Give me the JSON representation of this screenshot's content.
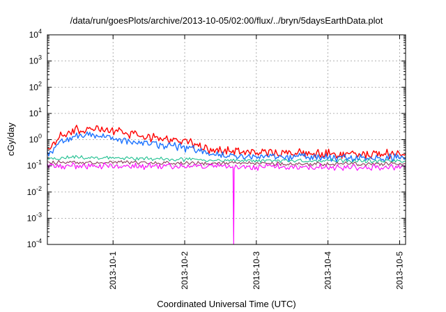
{
  "chart_data": {
    "type": "line",
    "title": "/data/run/goesPlots/archive/2013-10-05/02:00/flux/../bryn/5daysEarthData.plot",
    "xlabel": "Coordinated Universal Time (UTC)",
    "ylabel": "cGy/day",
    "yscale": "log",
    "ylim": [
      0.0001,
      10000
    ],
    "y_ticks": [
      {
        "value": 0.0001,
        "base": "10",
        "exp": "-4"
      },
      {
        "value": 0.001,
        "base": "10",
        "exp": "-3"
      },
      {
        "value": 0.01,
        "base": "10",
        "exp": "-2"
      },
      {
        "value": 0.1,
        "base": "10",
        "exp": "-1"
      },
      {
        "value": 1,
        "base": "10",
        "exp": "0"
      },
      {
        "value": 10,
        "base": "10",
        "exp": "1"
      },
      {
        "value": 100,
        "base": "10",
        "exp": "2"
      },
      {
        "value": 1000,
        "base": "10",
        "exp": "3"
      },
      {
        "value": 10000,
        "base": "10",
        "exp": "4"
      }
    ],
    "xlim": [
      "2013-09-30 02:00",
      "2013-10-05 02:00"
    ],
    "x_ticks": [
      "2013-10-1",
      "2013-10-2",
      "2013-10-3",
      "2013-10-4",
      "2013-10-5"
    ],
    "x_tick_dates": [
      "2013-10-01 00:00",
      "2013-10-02 00:00",
      "2013-10-03 00:00",
      "2013-10-04 00:00",
      "2013-10-05 00:00"
    ],
    "grid": true,
    "legend": "none",
    "series": [
      {
        "color": "#ff0000",
        "x": [
          "2013-09-30 02:00",
          "2013-09-30 06:00",
          "2013-09-30 10:00",
          "2013-09-30 14:00",
          "2013-09-30 18:00",
          "2013-09-30 22:00",
          "2013-10-01 02:00",
          "2013-10-01 06:00",
          "2013-10-01 10:00",
          "2013-10-01 14:00",
          "2013-10-01 18:00",
          "2013-10-01 22:00",
          "2013-10-02 02:00",
          "2013-10-02 06:00",
          "2013-10-02 10:00",
          "2013-10-02 14:00",
          "2013-10-02 18:00",
          "2013-10-02 22:00",
          "2013-10-03 02:00",
          "2013-10-03 06:00",
          "2013-10-03 10:00",
          "2013-10-03 14:00",
          "2013-10-03 18:00",
          "2013-10-03 22:00",
          "2013-10-04 02:00",
          "2013-10-04 06:00",
          "2013-10-04 10:00",
          "2013-10-04 14:00",
          "2013-10-04 18:00",
          "2013-10-04 22:00",
          "2013-10-05 02:00"
        ],
        "y": [
          0.35,
          1.2,
          2.3,
          2.5,
          2.7,
          2.4,
          2.0,
          1.6,
          1.35,
          1.2,
          1.05,
          0.9,
          0.75,
          0.55,
          0.4,
          0.36,
          0.33,
          0.32,
          0.32,
          0.31,
          0.31,
          0.3,
          0.3,
          0.3,
          0.29,
          0.29,
          0.29,
          0.29,
          0.28,
          0.28,
          0.28
        ]
      },
      {
        "color": "#1e74ff",
        "x": [
          "2013-09-30 02:00",
          "2013-09-30 06:00",
          "2013-09-30 10:00",
          "2013-09-30 14:00",
          "2013-09-30 18:00",
          "2013-09-30 22:00",
          "2013-10-01 02:00",
          "2013-10-01 06:00",
          "2013-10-01 10:00",
          "2013-10-01 14:00",
          "2013-10-01 18:00",
          "2013-10-01 22:00",
          "2013-10-02 02:00",
          "2013-10-02 06:00",
          "2013-10-02 10:00",
          "2013-10-02 14:00",
          "2013-10-02 18:00",
          "2013-10-02 22:00",
          "2013-10-03 02:00",
          "2013-10-03 06:00",
          "2013-10-03 10:00",
          "2013-10-03 14:00",
          "2013-10-03 18:00",
          "2013-10-03 22:00",
          "2013-10-04 02:00",
          "2013-10-04 06:00",
          "2013-10-04 10:00",
          "2013-10-04 14:00",
          "2013-10-04 18:00",
          "2013-10-04 22:00",
          "2013-10-05 02:00"
        ],
        "y": [
          0.25,
          0.8,
          1.3,
          1.4,
          1.35,
          1.2,
          1.0,
          0.85,
          0.75,
          0.68,
          0.6,
          0.52,
          0.45,
          0.35,
          0.27,
          0.24,
          0.23,
          0.22,
          0.22,
          0.22,
          0.21,
          0.21,
          0.21,
          0.21,
          0.21,
          0.2,
          0.2,
          0.2,
          0.2,
          0.2,
          0.2
        ]
      },
      {
        "color": "#20c090",
        "x": [
          "2013-09-30 02:00",
          "2013-09-30 12:00",
          "2013-09-30 22:00",
          "2013-10-01 08:00",
          "2013-10-01 18:00",
          "2013-10-02 04:00",
          "2013-10-02 14:00",
          "2013-10-03 00:00",
          "2013-10-03 10:00",
          "2013-10-03 20:00",
          "2013-10-04 06:00",
          "2013-10-04 16:00",
          "2013-10-05 02:00"
        ],
        "y": [
          0.18,
          0.22,
          0.2,
          0.19,
          0.18,
          0.17,
          0.165,
          0.16,
          0.16,
          0.155,
          0.155,
          0.15,
          0.15
        ]
      },
      {
        "color": "#8b3a5a",
        "x": [
          "2013-09-30 02:00",
          "2013-09-30 12:00",
          "2013-09-30 22:00",
          "2013-10-01 08:00",
          "2013-10-01 18:00",
          "2013-10-02 04:00",
          "2013-10-02 14:00",
          "2013-10-03 00:00",
          "2013-10-03 10:00",
          "2013-10-03 20:00",
          "2013-10-04 06:00",
          "2013-10-04 16:00",
          "2013-10-05 02:00"
        ],
        "y": [
          0.13,
          0.14,
          0.135,
          0.13,
          0.13,
          0.125,
          0.125,
          0.125,
          0.12,
          0.12,
          0.12,
          0.12,
          0.12
        ]
      },
      {
        "color": "#ff00ff",
        "x": [
          "2013-09-30 02:00",
          "2013-09-30 12:00",
          "2013-09-30 22:00",
          "2013-10-01 08:00",
          "2013-10-01 18:00",
          "2013-10-02 04:00",
          "2013-10-02 14:00",
          "2013-10-02 16:12",
          "2013-10-02 16:24",
          "2013-10-02 16:36",
          "2013-10-03 00:00",
          "2013-10-03 10:00",
          "2013-10-03 20:00",
          "2013-10-04 06:00",
          "2013-10-04 16:00",
          "2013-10-05 02:00"
        ],
        "y": [
          0.095,
          0.1,
          0.1,
          0.095,
          0.095,
          0.095,
          0.095,
          0.09,
          0.0001,
          0.09,
          0.09,
          0.09,
          0.09,
          0.09,
          0.09,
          0.09
        ]
      }
    ]
  }
}
